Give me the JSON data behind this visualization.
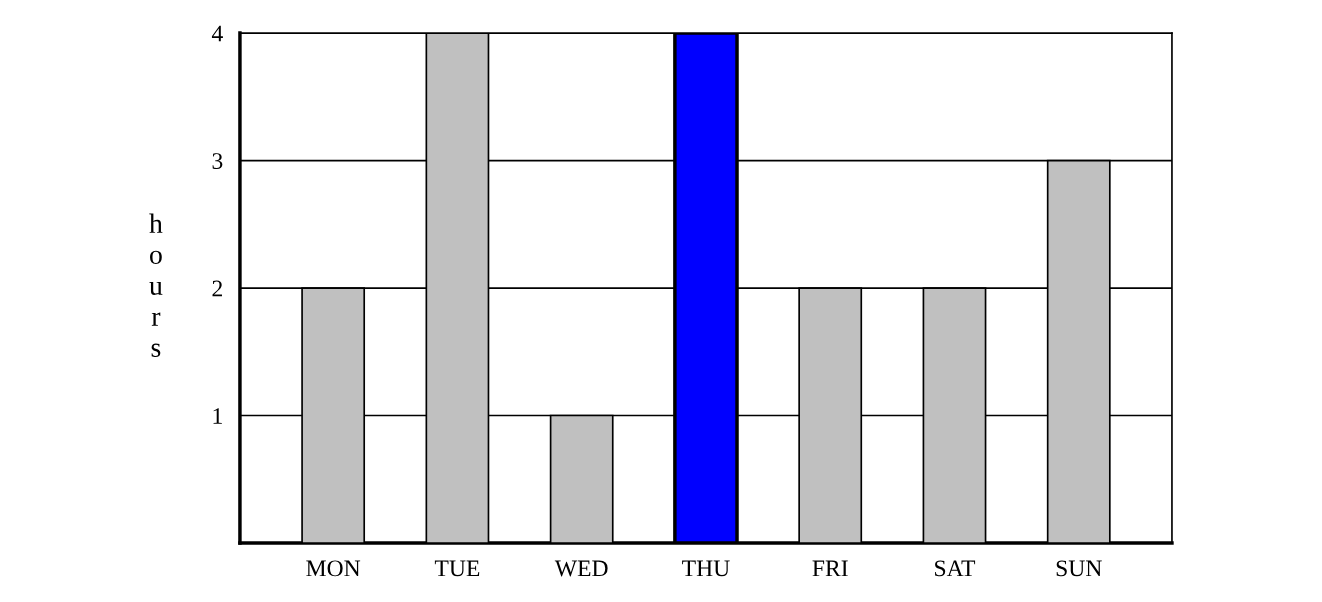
{
  "chart_data": {
    "type": "bar",
    "ylabel": "hours",
    "categories": [
      "MON",
      "TUE",
      "WED",
      "THU",
      "FRI",
      "SAT",
      "SUN"
    ],
    "values": [
      2,
      4,
      1,
      4,
      2,
      2,
      3
    ],
    "colors": [
      "#c0c0c0",
      "#c0c0c0",
      "#c0c0c0",
      "#0000ff",
      "#c0c0c0",
      "#c0c0c0",
      "#c0c0c0"
    ],
    "ylim": [
      0,
      4
    ],
    "yticks": [
      1,
      2,
      3,
      4
    ],
    "grid": "y",
    "legend": false
  }
}
